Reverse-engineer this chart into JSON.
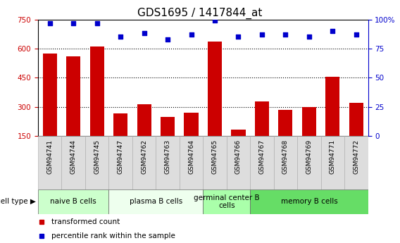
{
  "title": "GDS1695 / 1417844_at",
  "samples": [
    "GSM94741",
    "GSM94744",
    "GSM94745",
    "GSM94747",
    "GSM94762",
    "GSM94763",
    "GSM94764",
    "GSM94765",
    "GSM94766",
    "GSM94767",
    "GSM94768",
    "GSM94769",
    "GSM94771",
    "GSM94772"
  ],
  "transformed_count": [
    575,
    560,
    610,
    265,
    315,
    250,
    270,
    635,
    185,
    330,
    285,
    300,
    455,
    320
  ],
  "percentile_rank": [
    97,
    97,
    97,
    85,
    88,
    83,
    87,
    99,
    85,
    87,
    87,
    85,
    90,
    87
  ],
  "cell_type_groups": [
    {
      "label": "naive B cells",
      "start": 0,
      "end": 3,
      "color": "#ccffcc"
    },
    {
      "label": "plasma B cells",
      "start": 3,
      "end": 7,
      "color": "#eeffee"
    },
    {
      "label": "germinal center B\ncells",
      "start": 7,
      "end": 9,
      "color": "#aaffaa"
    },
    {
      "label": "memory B cells",
      "start": 9,
      "end": 14,
      "color": "#66dd66"
    }
  ],
  "ylim_left": [
    150,
    750
  ],
  "ylim_right": [
    0,
    100
  ],
  "yticks_left": [
    150,
    300,
    450,
    600,
    750
  ],
  "yticks_right": [
    0,
    25,
    50,
    75,
    100
  ],
  "bar_color": "#cc0000",
  "dot_color": "#0000cc",
  "legend_bar_label": "transformed count",
  "legend_dot_label": "percentile rank within the sample",
  "left_axis_color": "#cc0000",
  "right_axis_color": "#0000cc"
}
